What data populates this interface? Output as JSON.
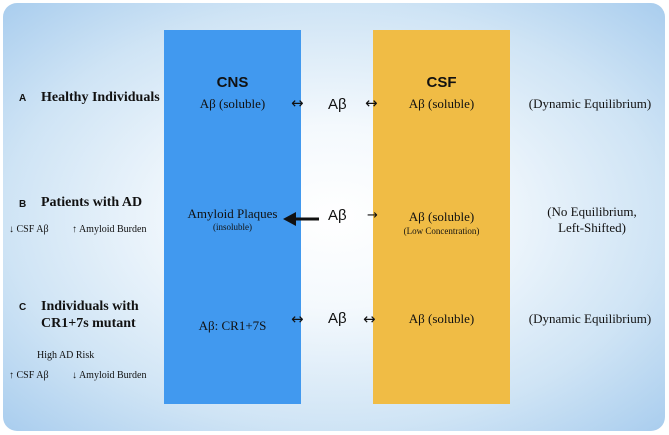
{
  "columns": {
    "cns": "CNS",
    "csf": "CSF"
  },
  "rows": {
    "a": {
      "letter": "A",
      "heading": "Healthy Individuals",
      "cns_text": "Aβ (soluble)",
      "middle": "Aβ",
      "csf_text": "Aβ (soluble)",
      "state": "(Dynamic Equilibrium)"
    },
    "b": {
      "letter": "B",
      "heading": "Patients with AD",
      "note_left": "↓ CSF Aβ",
      "note_right": "↑ Amyloid Burden",
      "cns_text": "Amyloid Plaques",
      "cns_sub": "(insoluble)",
      "middle": "Aβ",
      "csf_text": "Aβ (soluble)",
      "csf_sub": "(Low Concentration)",
      "state_line1": "(No Equilibrium,",
      "state_line2": "Left-Shifted)"
    },
    "c": {
      "letter": "C",
      "heading_line1": "Individuals with",
      "heading_line2": "CR1+7s mutant",
      "risk": "High AD Risk",
      "note_left": "↑ CSF Aβ",
      "note_right": "↓ Amyloid Burden",
      "cns_text": "Aβ: CR1+7S",
      "middle": "Aβ",
      "csf_text": "Aβ (soluble)",
      "state": "(Dynamic Equilibrium)"
    }
  },
  "arrows": {
    "double": "↔",
    "right": "→"
  }
}
